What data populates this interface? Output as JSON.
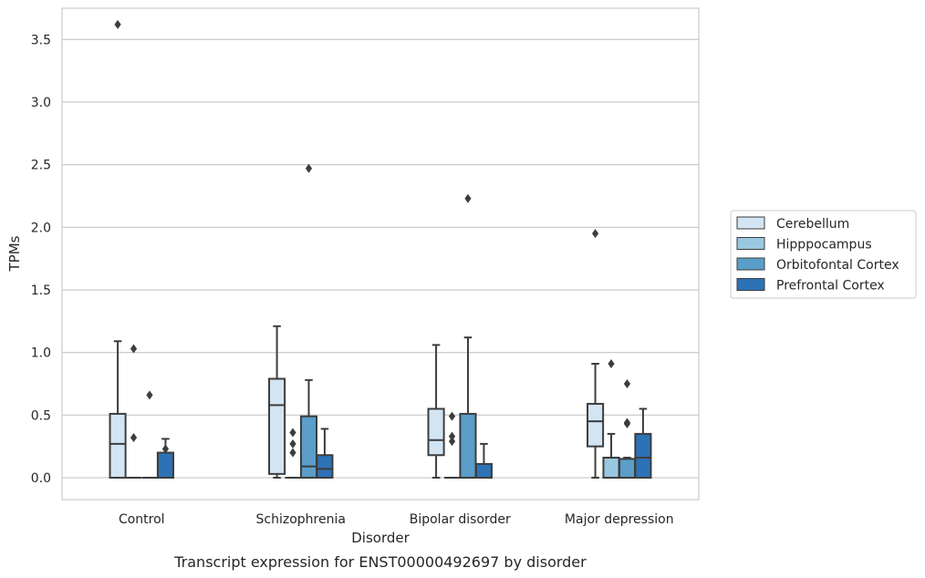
{
  "chart_data": {
    "type": "boxplot",
    "title": "",
    "caption": "Transcript expression for ENST00000492697 by disorder",
    "xlabel": "Disorder",
    "ylabel": "TPMs",
    "ylim": [
      -0.175,
      3.75
    ],
    "yticks": [
      "0.0",
      "0.5",
      "1.0",
      "1.5",
      "2.0",
      "2.5",
      "3.0",
      "3.5"
    ],
    "ytick_values": [
      0,
      0.5,
      1.0,
      1.5,
      2.0,
      2.5,
      3.0,
      3.5
    ],
    "grid": "horizontal",
    "legend_position": "right",
    "categories": [
      "Control",
      "Schizophrenia",
      "Bipolar disorder",
      "Major depression"
    ],
    "series": [
      {
        "name": "Cerebellum",
        "color": "#d3e4f3",
        "boxes": [
          {
            "whislo": 0.0,
            "q1": 0.0,
            "med": 0.27,
            "q3": 0.51,
            "whishi": 1.09,
            "fliers": [
              3.62
            ]
          },
          {
            "whislo": 0.0,
            "q1": 0.03,
            "med": 0.58,
            "q3": 0.79,
            "whishi": 1.21,
            "fliers": []
          },
          {
            "whislo": 0.0,
            "q1": 0.18,
            "med": 0.3,
            "q3": 0.55,
            "whishi": 1.06,
            "fliers": []
          },
          {
            "whislo": 0.0,
            "q1": 0.25,
            "med": 0.45,
            "q3": 0.59,
            "whishi": 0.91,
            "fliers": [
              1.95
            ]
          }
        ]
      },
      {
        "name": "Hipppocampus",
        "color": "#9ac8e0",
        "boxes": [
          {
            "whislo": 0.0,
            "q1": 0.0,
            "med": 0.0,
            "q3": 0.0,
            "whishi": 0.0,
            "fliers": [
              1.03,
              0.32
            ]
          },
          {
            "whislo": 0.0,
            "q1": 0.0,
            "med": 0.0,
            "q3": 0.0,
            "whishi": 0.0,
            "fliers": [
              0.36,
              0.27,
              0.2
            ]
          },
          {
            "whislo": 0.0,
            "q1": 0.0,
            "med": 0.0,
            "q3": 0.0,
            "whishi": 0.0,
            "fliers": [
              0.49,
              0.33,
              0.29
            ]
          },
          {
            "whislo": 0.0,
            "q1": 0.0,
            "med": 0.0,
            "q3": 0.16,
            "whishi": 0.35,
            "fliers": [
              0.91
            ]
          }
        ]
      },
      {
        "name": "Orbitofontal Cortex",
        "color": "#5a9ec9",
        "boxes": [
          {
            "whislo": 0.0,
            "q1": 0.0,
            "med": 0.0,
            "q3": 0.0,
            "whishi": 0.0,
            "fliers": [
              0.66
            ]
          },
          {
            "whislo": 0.0,
            "q1": 0.0,
            "med": 0.09,
            "q3": 0.49,
            "whishi": 0.78,
            "fliers": [
              2.47
            ]
          },
          {
            "whislo": 0.0,
            "q1": 0.0,
            "med": 0.0,
            "q3": 0.51,
            "whishi": 1.12,
            "fliers": [
              2.23
            ]
          },
          {
            "whislo": 0.0,
            "q1": 0.0,
            "med": 0.0,
            "q3": 0.15,
            "whishi": 0.16,
            "fliers": [
              0.75,
              0.44,
              0.43
            ]
          }
        ]
      },
      {
        "name": "Prefrontal Cortex",
        "color": "#2d72b6",
        "boxes": [
          {
            "whislo": 0.0,
            "q1": 0.0,
            "med": 0.0,
            "q3": 0.2,
            "whishi": 0.31,
            "fliers": [
              0.23
            ]
          },
          {
            "whislo": 0.0,
            "q1": 0.0,
            "med": 0.07,
            "q3": 0.18,
            "whishi": 0.39,
            "fliers": []
          },
          {
            "whislo": 0.0,
            "q1": 0.0,
            "med": 0.0,
            "q3": 0.11,
            "whishi": 0.27,
            "fliers": []
          },
          {
            "whislo": 0.0,
            "q1": 0.0,
            "med": 0.16,
            "q3": 0.35,
            "whishi": 0.55,
            "fliers": []
          }
        ]
      }
    ]
  }
}
